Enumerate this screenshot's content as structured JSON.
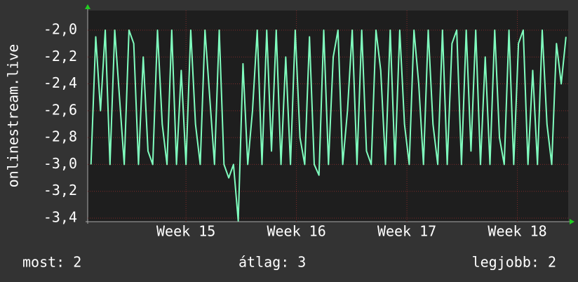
{
  "chart_data": {
    "type": "line",
    "y_label": "onlinestream.live",
    "x": [
      14.14,
      14.183,
      14.226,
      14.269,
      14.312,
      14.355,
      14.398,
      14.441,
      14.484,
      14.527,
      14.57,
      14.613,
      14.656,
      14.699,
      14.742,
      14.785,
      14.828,
      14.871,
      14.914,
      14.957,
      15.0,
      15.043,
      15.086,
      15.129,
      15.172,
      15.215,
      15.258,
      15.301,
      15.344,
      15.387,
      15.43,
      15.473,
      15.516,
      15.559,
      15.602,
      15.645,
      15.688,
      15.731,
      15.774,
      15.817,
      15.86,
      15.903,
      15.946,
      15.989,
      16.032,
      16.075,
      16.118,
      16.161,
      16.204,
      16.247,
      16.29,
      16.333,
      16.376,
      16.419,
      16.462,
      16.505,
      16.548,
      16.591,
      16.634,
      16.677,
      16.72,
      16.763,
      16.806,
      16.849,
      16.892,
      16.935,
      16.978,
      17.021,
      17.064,
      17.107,
      17.15,
      17.193,
      17.236,
      17.279,
      17.322,
      17.365,
      17.408,
      17.451,
      17.494,
      17.537,
      17.58,
      17.623,
      17.666,
      17.709,
      17.752,
      17.795,
      17.838,
      17.881,
      17.924,
      17.967,
      18.01,
      18.053,
      18.096,
      18.139,
      18.182,
      18.225,
      18.268,
      18.311,
      18.354,
      18.397,
      18.44
    ],
    "values": [
      -3.0,
      -2.05,
      -2.6,
      -2.0,
      -3.0,
      -2.0,
      -2.5,
      -3.0,
      -2.0,
      -2.1,
      -3.0,
      -2.2,
      -2.9,
      -3.0,
      -2.0,
      -2.7,
      -3.0,
      -2.0,
      -3.0,
      -2.3,
      -3.0,
      -2.0,
      -2.7,
      -3.0,
      -2.0,
      -2.5,
      -3.0,
      -2.0,
      -3.0,
      -3.1,
      -3.0,
      -3.42,
      -2.25,
      -3.0,
      -2.6,
      -2.0,
      -3.0,
      -2.0,
      -2.9,
      -2.0,
      -3.0,
      -2.2,
      -3.0,
      -2.0,
      -2.8,
      -3.0,
      -2.05,
      -3.0,
      -3.08,
      -2.0,
      -3.0,
      -2.2,
      -2.0,
      -3.0,
      -2.6,
      -2.0,
      -3.0,
      -2.0,
      -2.9,
      -3.0,
      -2.0,
      -2.3,
      -3.0,
      -2.0,
      -3.0,
      -2.0,
      -2.7,
      -3.0,
      -2.0,
      -2.4,
      -3.0,
      -2.0,
      -2.7,
      -3.0,
      -2.0,
      -3.0,
      -2.1,
      -2.0,
      -3.0,
      -2.0,
      -2.9,
      -2.0,
      -3.0,
      -2.2,
      -3.0,
      -2.0,
      -2.8,
      -3.0,
      -2.0,
      -3.0,
      -2.1,
      -2.0,
      -3.0,
      -2.3,
      -3.0,
      -2.0,
      -2.7,
      -3.0,
      -2.1,
      -2.4,
      -2.05
    ],
    "color": "#80ffbf",
    "xlim": [
      14.11,
      18.46
    ],
    "xticks": [
      {
        "value": 15,
        "label": "Week 15"
      },
      {
        "value": 16,
        "label": "Week 16"
      },
      {
        "value": 17,
        "label": "Week 17"
      },
      {
        "value": 18,
        "label": "Week 18"
      }
    ],
    "ylim": [
      -3.426,
      -1.854
    ],
    "yticks": [
      {
        "value": -2.0,
        "label": "-2,0"
      },
      {
        "value": -2.2,
        "label": "-2,2"
      },
      {
        "value": -2.4,
        "label": "-2,4"
      },
      {
        "value": -2.6,
        "label": "-2,6"
      },
      {
        "value": -2.8,
        "label": "-2,8"
      },
      {
        "value": -3.0,
        "label": "-3,0"
      },
      {
        "value": -3.2,
        "label": "-3,2"
      },
      {
        "value": -3.4,
        "label": "-3,4"
      }
    ],
    "grid": true,
    "footer": [
      "most: 2",
      "átlag: 3",
      "legjobb: 2"
    ]
  }
}
